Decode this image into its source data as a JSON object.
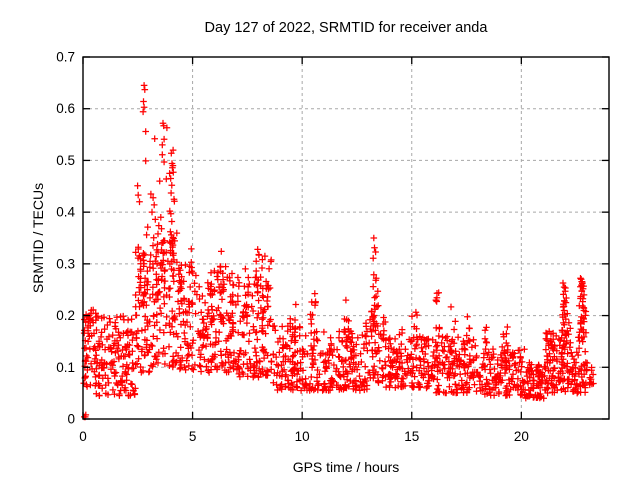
{
  "chart_data": {
    "type": "scatter",
    "title": "Day 127 of 2022, SRMTID for receiver anda",
    "xlabel": "GPS time / hours",
    "ylabel": "SRMTID / TECUs",
    "xlim": [
      0,
      24
    ],
    "ylim": [
      0,
      0.7
    ],
    "xticks": [
      0,
      5,
      10,
      15,
      20
    ],
    "yticks": [
      0,
      0.1,
      0.2,
      0.3,
      0.4,
      0.5,
      0.6,
      0.7
    ],
    "grid": true,
    "grid_color": "#a8a8a8",
    "grid_style": "dashed",
    "marker": "plus",
    "marker_color": "#ff0000",
    "legend": "none",
    "points_outliers": [
      [
        0.06,
        0.004
      ],
      [
        0.1,
        0.004
      ],
      [
        0.13,
        0.008
      ],
      [
        2.79,
        0.645
      ],
      [
        2.82,
        0.637
      ],
      [
        2.76,
        0.614
      ],
      [
        2.79,
        0.603
      ],
      [
        2.74,
        0.594
      ],
      [
        2.86,
        0.556
      ],
      [
        2.86,
        0.499
      ],
      [
        3.27,
        0.542
      ],
      [
        3.65,
        0.572
      ],
      [
        3.68,
        0.567
      ],
      [
        3.83,
        0.563
      ],
      [
        3.7,
        0.541
      ],
      [
        3.62,
        0.53
      ],
      [
        3.62,
        0.511
      ],
      [
        3.7,
        0.497
      ],
      [
        4.11,
        0.52
      ],
      [
        4.03,
        0.514
      ],
      [
        4.06,
        0.494
      ],
      [
        4.1,
        0.49
      ],
      [
        4.08,
        0.486
      ],
      [
        4.12,
        0.477
      ],
      [
        3.95,
        0.475
      ],
      [
        3.8,
        0.464
      ],
      [
        3.5,
        0.46
      ],
      [
        4.0,
        0.465
      ],
      [
        4.05,
        0.452
      ],
      [
        4.02,
        0.437
      ],
      [
        4.15,
        0.425
      ],
      [
        4.17,
        0.421
      ],
      [
        3.96,
        0.402
      ],
      [
        4.01,
        0.397
      ],
      [
        4.05,
        0.382
      ],
      [
        3.99,
        0.362
      ],
      [
        4.03,
        0.356
      ],
      [
        4.1,
        0.351
      ],
      [
        2.49,
        0.451
      ],
      [
        2.52,
        0.433
      ],
      [
        2.58,
        0.42
      ],
      [
        2.95,
        0.371
      ],
      [
        2.9,
        0.356
      ],
      [
        3.1,
        0.435
      ],
      [
        3.2,
        0.428
      ],
      [
        3.25,
        0.414
      ],
      [
        3.15,
        0.4
      ],
      [
        3.3,
        0.386
      ],
      [
        3.46,
        0.374
      ],
      [
        3.55,
        0.39
      ],
      [
        3.58,
        0.368
      ],
      [
        3.42,
        0.358
      ],
      [
        4.94,
        0.329
      ],
      [
        6.31,
        0.324
      ],
      [
        7.97,
        0.328
      ],
      [
        8.02,
        0.318
      ],
      [
        8.3,
        0.315
      ],
      [
        13.27,
        0.35
      ],
      [
        13.3,
        0.331
      ],
      [
        13.35,
        0.323
      ],
      [
        13.24,
        0.311
      ],
      [
        13.27,
        0.279
      ],
      [
        13.38,
        0.272
      ],
      [
        13.24,
        0.256
      ],
      [
        13.45,
        0.247
      ],
      [
        16.15,
        0.243
      ],
      [
        16.1,
        0.23
      ],
      [
        21.9,
        0.263
      ],
      [
        21.95,
        0.255
      ],
      [
        22.0,
        0.247
      ],
      [
        21.92,
        0.241
      ],
      [
        22.05,
        0.234
      ],
      [
        21.97,
        0.228
      ],
      [
        22.7,
        0.272
      ],
      [
        22.78,
        0.265
      ],
      [
        22.74,
        0.259
      ],
      [
        22.82,
        0.252
      ],
      [
        22.76,
        0.247
      ],
      [
        22.86,
        0.24
      ],
      [
        22.7,
        0.233
      ],
      [
        22.8,
        0.227
      ],
      [
        22.78,
        0.262
      ],
      [
        22.84,
        0.257
      ]
    ],
    "density_bands": [
      {
        "x": [
          0.03,
          0.4
        ],
        "y": [
          0.06,
          0.205
        ],
        "n": 35,
        "p": 1.0
      },
      {
        "x": [
          0.05,
          0.6
        ],
        "y": [
          0.165,
          0.212
        ],
        "n": 12,
        "p": 1.0
      },
      {
        "x": [
          0.4,
          2.4
        ],
        "y": [
          0.045,
          0.2
        ],
        "n": 160,
        "p": 1.5
      },
      {
        "x": [
          2.4,
          3.1
        ],
        "y": [
          0.09,
          0.33
        ],
        "n": 62,
        "p": 1.4
      },
      {
        "x": [
          3.1,
          4.35
        ],
        "y": [
          0.1,
          0.36
        ],
        "n": 95,
        "p": 1.3
      },
      {
        "x": [
          4.35,
          5.2
        ],
        "y": [
          0.095,
          0.3
        ],
        "n": 62,
        "p": 1.5
      },
      {
        "x": [
          5.2,
          6.1
        ],
        "y": [
          0.09,
          0.27
        ],
        "n": 65,
        "p": 1.5
      },
      {
        "x": [
          6.1,
          7.1
        ],
        "y": [
          0.09,
          0.3
        ],
        "n": 75,
        "p": 1.5
      },
      {
        "x": [
          7.1,
          8.6
        ],
        "y": [
          0.08,
          0.28
        ],
        "n": 105,
        "p": 1.6
      },
      {
        "x": [
          8.6,
          10.4
        ],
        "y": [
          0.055,
          0.18
        ],
        "n": 112,
        "p": 1.3
      },
      {
        "x": [
          10.4,
          11.9
        ],
        "y": [
          0.055,
          0.17
        ],
        "n": 95,
        "p": 1.3
      },
      {
        "x": [
          11.9,
          13.0
        ],
        "y": [
          0.055,
          0.17
        ],
        "n": 76,
        "p": 1.3
      },
      {
        "x": [
          13.0,
          13.8
        ],
        "y": [
          0.07,
          0.22
        ],
        "n": 55,
        "p": 1.4
      },
      {
        "x": [
          13.8,
          16.1
        ],
        "y": [
          0.06,
          0.16
        ],
        "n": 150,
        "p": 1.3
      },
      {
        "x": [
          16.1,
          18.1
        ],
        "y": [
          0.05,
          0.16
        ],
        "n": 135,
        "p": 1.3
      },
      {
        "x": [
          18.1,
          20.2
        ],
        "y": [
          0.045,
          0.14
        ],
        "n": 140,
        "p": 1.3
      },
      {
        "x": [
          20.2,
          21.1
        ],
        "y": [
          0.04,
          0.11
        ],
        "n": 75,
        "p": 1.2
      },
      {
        "x": [
          21.1,
          21.85
        ],
        "y": [
          0.05,
          0.17
        ],
        "n": 70,
        "p": 1.3
      },
      {
        "x": [
          21.85,
          22.25
        ],
        "y": [
          0.05,
          0.21
        ],
        "n": 45,
        "p": 1.1
      },
      {
        "x": [
          22.25,
          22.6
        ],
        "y": [
          0.05,
          0.14
        ],
        "n": 28,
        "p": 1.2
      },
      {
        "x": [
          22.6,
          22.95
        ],
        "y": [
          0.05,
          0.22
        ],
        "n": 45,
        "p": 1.1
      },
      {
        "x": [
          22.95,
          23.3
        ],
        "y": [
          0.06,
          0.13
        ],
        "n": 14,
        "p": 1.2
      }
    ],
    "event_columns": [
      {
        "cx": 2.55,
        "sx": 0.08,
        "y": [
          0.2,
          0.34
        ],
        "n": 8
      },
      {
        "cx": 2.8,
        "sx": 0.06,
        "y": [
          0.15,
          0.35
        ],
        "n": 10
      },
      {
        "cx": 3.35,
        "sx": 0.1,
        "y": [
          0.2,
          0.355
        ],
        "n": 12
      },
      {
        "cx": 3.65,
        "sx": 0.08,
        "y": [
          0.25,
          0.36
        ],
        "n": 10
      },
      {
        "cx": 4.05,
        "sx": 0.1,
        "y": [
          0.25,
          0.35
        ],
        "n": 12
      },
      {
        "cx": 4.45,
        "sx": 0.08,
        "y": [
          0.18,
          0.3
        ],
        "n": 8
      },
      {
        "cx": 4.95,
        "sx": 0.06,
        "y": [
          0.22,
          0.325
        ],
        "n": 6
      },
      {
        "cx": 5.9,
        "sx": 0.1,
        "y": [
          0.18,
          0.305
        ],
        "n": 10
      },
      {
        "cx": 6.3,
        "sx": 0.1,
        "y": [
          0.2,
          0.33
        ],
        "n": 12
      },
      {
        "cx": 6.75,
        "sx": 0.1,
        "y": [
          0.18,
          0.3
        ],
        "n": 8
      },
      {
        "cx": 7.5,
        "sx": 0.1,
        "y": [
          0.18,
          0.295
        ],
        "n": 8
      },
      {
        "cx": 7.97,
        "sx": 0.08,
        "y": [
          0.2,
          0.325
        ],
        "n": 10
      },
      {
        "cx": 8.35,
        "sx": 0.25,
        "y": [
          0.17,
          0.315
        ],
        "n": 20
      },
      {
        "cx": 9.6,
        "sx": 0.15,
        "y": [
          0.14,
          0.23
        ],
        "n": 8
      },
      {
        "cx": 10.5,
        "sx": 0.12,
        "y": [
          0.15,
          0.26
        ],
        "n": 10
      },
      {
        "cx": 12.05,
        "sx": 0.12,
        "y": [
          0.14,
          0.245
        ],
        "n": 10
      },
      {
        "cx": 12.9,
        "sx": 0.1,
        "y": [
          0.13,
          0.2
        ],
        "n": 7
      },
      {
        "cx": 13.3,
        "sx": 0.08,
        "y": [
          0.17,
          0.28
        ],
        "n": 8
      },
      {
        "cx": 14.45,
        "sx": 0.15,
        "y": [
          0.12,
          0.2
        ],
        "n": 8
      },
      {
        "cx": 15.1,
        "sx": 0.15,
        "y": [
          0.12,
          0.21
        ],
        "n": 9
      },
      {
        "cx": 16.2,
        "sx": 0.1,
        "y": [
          0.14,
          0.245
        ],
        "n": 8
      },
      {
        "cx": 16.9,
        "sx": 0.15,
        "y": [
          0.12,
          0.22
        ],
        "n": 9
      },
      {
        "cx": 17.5,
        "sx": 0.15,
        "y": [
          0.12,
          0.21
        ],
        "n": 8
      },
      {
        "cx": 18.35,
        "sx": 0.15,
        "y": [
          0.11,
          0.185
        ],
        "n": 8
      },
      {
        "cx": 19.25,
        "sx": 0.15,
        "y": [
          0.11,
          0.19
        ],
        "n": 8
      },
      {
        "cx": 21.35,
        "sx": 0.12,
        "y": [
          0.12,
          0.175
        ],
        "n": 8
      },
      {
        "cx": 21.95,
        "sx": 0.1,
        "y": [
          0.12,
          0.265
        ],
        "n": 14
      },
      {
        "cx": 22.78,
        "sx": 0.1,
        "y": [
          0.17,
          0.272
        ],
        "n": 12
      }
    ]
  }
}
